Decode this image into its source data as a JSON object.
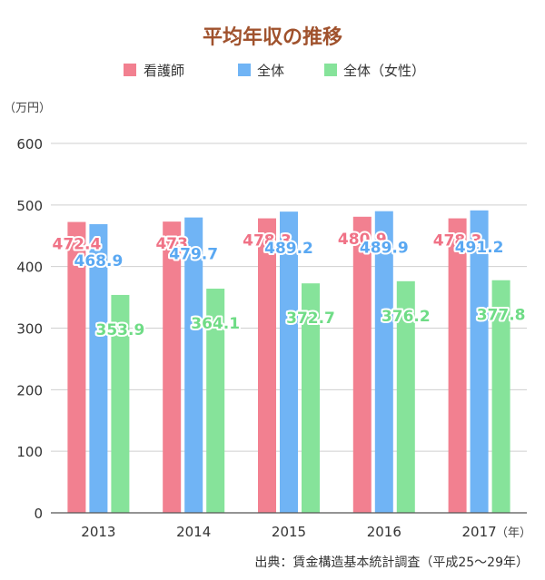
{
  "chart_data": {
    "type": "bar",
    "title": "平均年収の推移",
    "y_unit": "（万円）",
    "x_unit": "（年）",
    "source": "出典：賃金構造基本統計調査（平成25〜29年）",
    "categories": [
      "2013",
      "2014",
      "2015",
      "2016",
      "2017"
    ],
    "ylim": [
      0,
      600
    ],
    "yticks": [
      0,
      100,
      200,
      300,
      400,
      500,
      600
    ],
    "grid": true,
    "legend_position": "top",
    "series": [
      {
        "name": "看護師",
        "color": "#f28090",
        "label_color": "#f07286",
        "values": [
          472.4,
          473,
          478.3,
          480.9,
          478.3
        ]
      },
      {
        "name": "全体",
        "color": "#70b4f5",
        "label_color": "#5aa8f2",
        "values": [
          468.9,
          479.7,
          489.2,
          489.9,
          491.2
        ]
      },
      {
        "name": "全体（女性）",
        "color": "#86e39a",
        "label_color": "#6fdc86",
        "values": [
          353.9,
          364.1,
          372.7,
          376.2,
          377.8
        ]
      }
    ]
  }
}
